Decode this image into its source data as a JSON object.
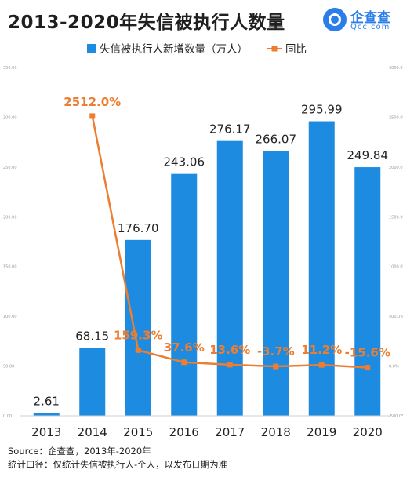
{
  "header": {
    "title": "2013-2020年失信被执行人数量",
    "brand_name": "企查查",
    "brand_domain": "Qcc.com"
  },
  "footer": {
    "source": "Source：企查查，2013年-2020年",
    "note": "统计口径：仅统计失信被执行人-个人，以发布日期为准"
  },
  "colors": {
    "bar": "#1d8ce0",
    "line": "#ed7d31",
    "bar_label": "#222222",
    "line_label": "#ed7d31"
  },
  "chart_data": {
    "type": "bar",
    "categories": [
      "2013",
      "2014",
      "2015",
      "2016",
      "2017",
      "2018",
      "2019",
      "2020"
    ],
    "series": [
      {
        "name": "失信被执行人新增数量（万人）",
        "type": "bar",
        "axis": "left",
        "values": [
          2.61,
          68.15,
          176.7,
          243.06,
          276.17,
          266.07,
          295.99,
          249.84
        ],
        "labels": [
          "2.61",
          "68.15",
          "176.70",
          "243.06",
          "276.17",
          "266.07",
          "295.99",
          "249.84"
        ]
      },
      {
        "name": "同比",
        "type": "line",
        "axis": "right",
        "values": [
          null,
          2512.0,
          159.3,
          37.6,
          13.6,
          -3.7,
          11.2,
          -15.6
        ],
        "labels": [
          "",
          "2512.0%",
          "159.3%",
          "37.6%",
          "13.6%",
          "-3.7%",
          "11.2%",
          "-15.6%"
        ]
      }
    ],
    "y_left": {
      "ylim": [
        0,
        350
      ],
      "ticks": [
        "0.00",
        "50.00",
        "100.00",
        "150.00",
        "200.00",
        "250.00",
        "300.00",
        "350.00"
      ]
    },
    "y_right": {
      "ylim": [
        -500,
        3000
      ],
      "ticks": [
        "-500.0%",
        "0.0%",
        "500.0%",
        "1000.0%",
        "1500.0%",
        "2000.0%",
        "2500.0%",
        "3000.0%"
      ]
    },
    "legend_position": "top-center",
    "grid": false
  }
}
